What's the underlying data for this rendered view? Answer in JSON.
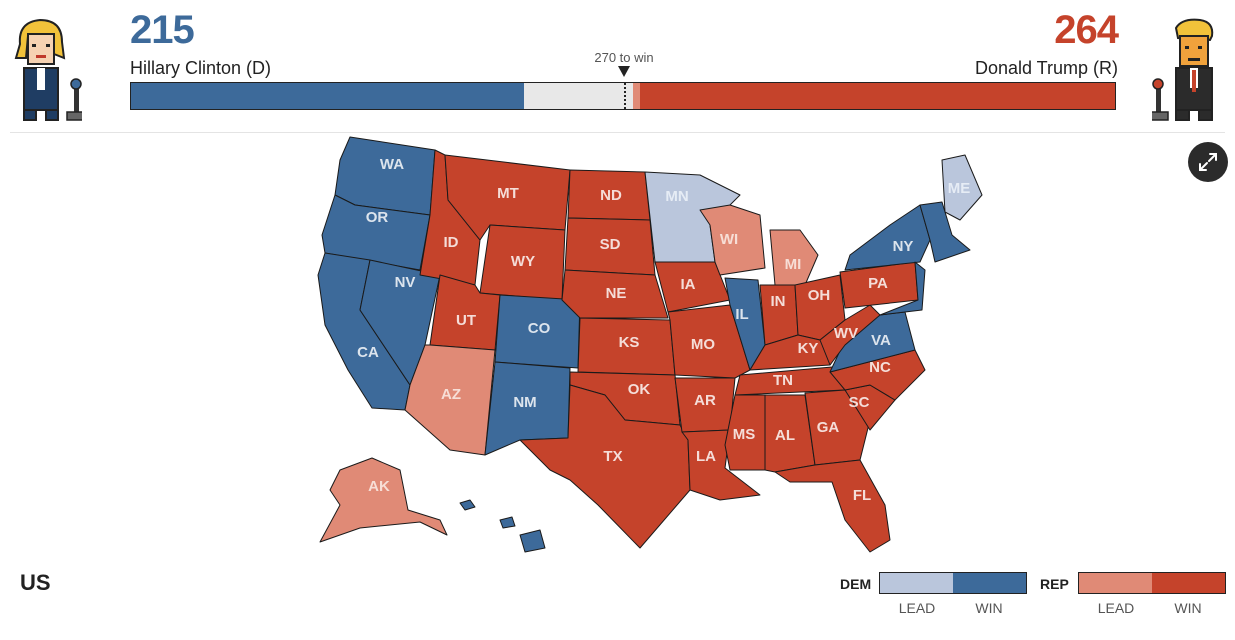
{
  "header": {
    "dem": {
      "votes": "215",
      "name": "Hillary Clinton (D)",
      "color": "#3d6a9a",
      "avatar_icon": "hillary-clinton-pixel-avatar"
    },
    "rep": {
      "votes": "264",
      "name": "Donald Trump (R)",
      "color": "#c5432b",
      "avatar_icon": "donald-trump-pixel-avatar"
    },
    "to_win_label": "270 to win",
    "progress": {
      "total": 538,
      "dem_win": 215,
      "rep_lead": 4,
      "rep_win": 260,
      "threshold": 270
    }
  },
  "expand_icon": "expand-arrows-icon",
  "colors": {
    "dem_win": "#3d6a9a",
    "dem_lead": "#bac6dc",
    "rep_lead": "#e08a76",
    "rep_win": "#c5432b",
    "undecided": "#f0f0f0"
  },
  "states": [
    {
      "abbr": "WA",
      "status": "dem_win"
    },
    {
      "abbr": "OR",
      "status": "dem_win"
    },
    {
      "abbr": "CA",
      "status": "dem_win"
    },
    {
      "abbr": "NV",
      "status": "dem_win"
    },
    {
      "abbr": "ID",
      "status": "rep_win"
    },
    {
      "abbr": "MT",
      "status": "rep_win"
    },
    {
      "abbr": "WY",
      "status": "rep_win"
    },
    {
      "abbr": "UT",
      "status": "rep_win"
    },
    {
      "abbr": "AZ",
      "status": "rep_lead"
    },
    {
      "abbr": "CO",
      "status": "dem_win"
    },
    {
      "abbr": "NM",
      "status": "dem_win"
    },
    {
      "abbr": "ND",
      "status": "rep_win"
    },
    {
      "abbr": "SD",
      "status": "rep_win"
    },
    {
      "abbr": "NE",
      "status": "rep_win"
    },
    {
      "abbr": "KS",
      "status": "rep_win"
    },
    {
      "abbr": "OK",
      "status": "rep_win"
    },
    {
      "abbr": "TX",
      "status": "rep_win"
    },
    {
      "abbr": "MN",
      "status": "dem_lead"
    },
    {
      "abbr": "IA",
      "status": "rep_win"
    },
    {
      "abbr": "MO",
      "status": "rep_win"
    },
    {
      "abbr": "AR",
      "status": "rep_win"
    },
    {
      "abbr": "LA",
      "status": "rep_win"
    },
    {
      "abbr": "WI",
      "status": "rep_lead"
    },
    {
      "abbr": "IL",
      "status": "dem_win"
    },
    {
      "abbr": "MI",
      "status": "rep_lead"
    },
    {
      "abbr": "IN",
      "status": "rep_win"
    },
    {
      "abbr": "OH",
      "status": "rep_win"
    },
    {
      "abbr": "KY",
      "status": "rep_win"
    },
    {
      "abbr": "TN",
      "status": "rep_win"
    },
    {
      "abbr": "MS",
      "status": "rep_win"
    },
    {
      "abbr": "AL",
      "status": "rep_win"
    },
    {
      "abbr": "GA",
      "status": "rep_win"
    },
    {
      "abbr": "FL",
      "status": "rep_win"
    },
    {
      "abbr": "SC",
      "status": "rep_win"
    },
    {
      "abbr": "NC",
      "status": "rep_win"
    },
    {
      "abbr": "VA",
      "status": "dem_win"
    },
    {
      "abbr": "WV",
      "status": "rep_win"
    },
    {
      "abbr": "PA",
      "status": "rep_win"
    },
    {
      "abbr": "NY",
      "status": "dem_win"
    },
    {
      "abbr": "ME",
      "status": "dem_lead"
    },
    {
      "abbr": "AK",
      "status": "rep_lead"
    },
    {
      "abbr": "HI",
      "status": "dem_win"
    }
  ],
  "footer": {
    "region": "US",
    "legend": {
      "dem_title": "DEM",
      "rep_title": "REP",
      "lead_label": "LEAD",
      "win_label": "WIN"
    }
  }
}
